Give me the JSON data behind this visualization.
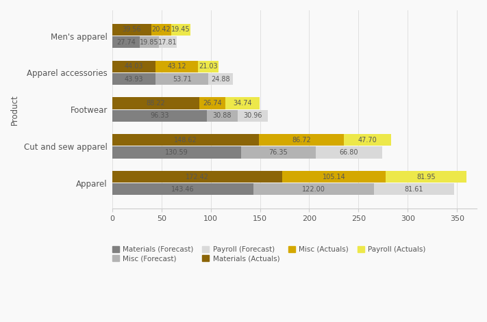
{
  "categories": [
    "Apparel",
    "Cut and sew apparel",
    "Footwear",
    "Apparel accessories",
    "Men's apparel"
  ],
  "actuals": {
    "Materials": [
      172.42,
      148.62,
      88.22,
      44.03,
      39.56
    ],
    "Misc": [
      105.14,
      86.72,
      26.74,
      43.12,
      20.42
    ],
    "Payroll": [
      81.95,
      47.7,
      34.74,
      21.03,
      19.45
    ]
  },
  "forecast": {
    "Materials": [
      143.46,
      130.59,
      96.33,
      43.93,
      27.74
    ],
    "Misc": [
      122.0,
      76.35,
      30.88,
      53.71,
      19.85
    ],
    "Payroll": [
      81.61,
      66.8,
      30.96,
      24.88,
      17.81
    ]
  },
  "colors": {
    "Materials_Forecast": "#808080",
    "Misc_Forecast": "#b3b3b3",
    "Payroll_Forecast": "#d9d9d9",
    "Materials_Actuals": "#8B6508",
    "Misc_Actuals": "#D4A800",
    "Payroll_Actuals": "#EDE84A"
  },
  "bar_height": 0.32,
  "bar_gap": 0.02,
  "xlim": [
    0,
    370
  ],
  "xticks": [
    0,
    50,
    100,
    150,
    200,
    250,
    300,
    350
  ],
  "ylabel": "Product",
  "background_color": "#f9f9f9",
  "text_color": "#555555",
  "label_fontsize": 7.0,
  "axis_label_fontsize": 8.5,
  "legend_fontsize": 7.5
}
